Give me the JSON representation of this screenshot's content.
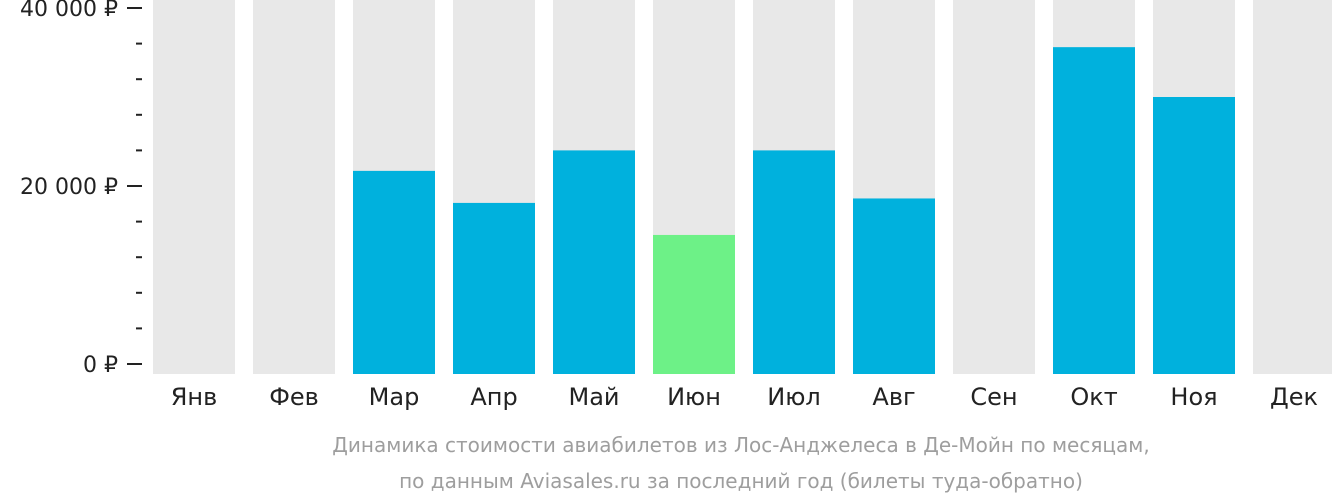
{
  "chart_data": {
    "type": "bar",
    "categories": [
      "Янв",
      "Фев",
      "Мар",
      "Апр",
      "Май",
      "Июн",
      "Июл",
      "Авг",
      "Сен",
      "Окт",
      "Ноя",
      "Дек"
    ],
    "values": [
      null,
      null,
      21700,
      18100,
      24000,
      14500,
      24000,
      18600,
      null,
      35600,
      30000,
      null
    ],
    "highlight_index": 5,
    "ylim": [
      0,
      40000
    ],
    "y_tick_labels": [
      {
        "value": 0,
        "label": "0 ₽"
      },
      {
        "value": 20000,
        "label": "20 000 ₽"
      },
      {
        "value": 40000,
        "label": "40 000 ₽"
      }
    ],
    "y_minor_step": 4000,
    "grid": false,
    "legend": "none",
    "caption_lines": [
      "Динамика стоимости авиабилетов из Лос-Анджелеса в Де-Мойн по месяцам,",
      "по данным Aviasales.ru за последний год (билеты туда-обратно)"
    ],
    "colors": {
      "bar": "#00b1dd",
      "highlight": "#6df187",
      "background_column": "#e8e8e8",
      "axis": "#222222",
      "caption": "#9e9e9e"
    }
  }
}
